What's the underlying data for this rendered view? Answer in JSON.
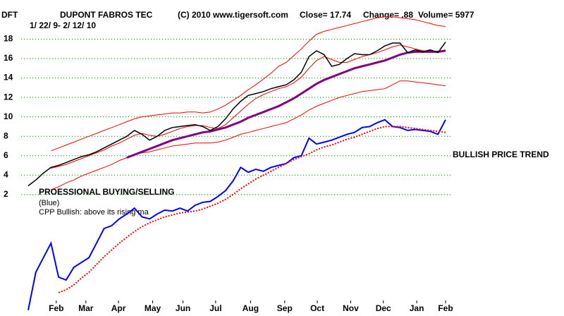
{
  "chart_data": {
    "type": "line",
    "ticker": "DFT",
    "title": "DUPONT FABROS TEC",
    "source": "(C) 2010 www.tigersoft.com",
    "close": "Close=  17.74",
    "change": "Change= .88",
    "volume": "Volume= 5977",
    "subtitle": "1/ 22/ 9- 2/ 12/ 10",
    "annotations": [
      "BULLISH PRICE TREND",
      "PROESSIONAL BUYING/SELLING",
      "(Blue)",
      "CPP Bullish: above its rising ma"
    ],
    "grid": true,
    "x": [
      0,
      1,
      2,
      3,
      4,
      5,
      6,
      7,
      8,
      9,
      10,
      11,
      12,
      13,
      14,
      15,
      16,
      17,
      18,
      19,
      20,
      21,
      22,
      23,
      24,
      25,
      26,
      27,
      28,
      29,
      30,
      31,
      32,
      33,
      34,
      35,
      36,
      37,
      38,
      39,
      40,
      41,
      42,
      43,
      44,
      45,
      46,
      47,
      48,
      49,
      50,
      51,
      52,
      53,
      54,
      55
    ],
    "xlim": [
      0,
      55
    ],
    "xticks": [
      {
        "value": 3.7,
        "label": "Feb"
      },
      {
        "value": 7.6,
        "label": "Mar"
      },
      {
        "value": 11.9,
        "label": "Apr"
      },
      {
        "value": 16.4,
        "label": "May"
      },
      {
        "value": 20.4,
        "label": "Jun"
      },
      {
        "value": 24.7,
        "label": "Jul"
      },
      {
        "value": 29.3,
        "label": "Aug"
      },
      {
        "value": 33.8,
        "label": "Sep"
      },
      {
        "value": 38.1,
        "label": "Oct"
      },
      {
        "value": 42.5,
        "label": "Nov"
      },
      {
        "value": 46.8,
        "label": "Dec"
      },
      {
        "value": 51.2,
        "label": "Jan"
      },
      {
        "value": 55,
        "label": "Feb"
      }
    ],
    "ylim": [
      -10.5,
      21.3
    ],
    "yticks": [
      2,
      4,
      6,
      8,
      10,
      12,
      14,
      16,
      18
    ],
    "series": [
      {
        "color": "#ff0000",
        "width": 1,
        "values": [
          null,
          null,
          null,
          6.5,
          6.8,
          7.1,
          7.4,
          7.7,
          8.0,
          8.3,
          8.6,
          8.9,
          9.2,
          9.5,
          9.8,
          10.0,
          10.1,
          10.2,
          10.3,
          10.4,
          10.4,
          10.5,
          10.5,
          10.4,
          10.5,
          10.8,
          11.2,
          11.7,
          12.2,
          12.8,
          13.3,
          13.9,
          14.5,
          15.2,
          15.6,
          16.3,
          17.0,
          17.8,
          18.5,
          18.8,
          19.0,
          19.2,
          19.4,
          19.6,
          19.8,
          20.0,
          20.2,
          20.3,
          20.3,
          20.2,
          20.1,
          20.0,
          19.8,
          19.6,
          19.4,
          19.3
        ]
      },
      {
        "color": "#ff0000",
        "width": 1,
        "values": [
          null,
          null,
          null,
          2.5,
          2.8,
          3.2,
          3.5,
          3.9,
          4.2,
          4.5,
          4.8,
          5.1,
          5.5,
          5.8,
          6.1,
          6.3,
          6.4,
          6.6,
          6.8,
          7.0,
          7.1,
          7.2,
          7.3,
          7.3,
          7.3,
          7.4,
          7.6,
          7.9,
          8.2,
          8.4,
          8.6,
          8.8,
          9.0,
          9.2,
          9.4,
          9.8,
          10.2,
          10.7,
          11.1,
          11.4,
          11.7,
          12.0,
          12.2,
          12.4,
          12.6,
          12.7,
          12.8,
          12.9,
          13.3,
          13.7,
          13.7,
          13.6,
          13.5,
          13.4,
          13.3,
          13.2
        ]
      },
      {
        "color": "#ff0000",
        "width": 1,
        "values": [
          null,
          null,
          null,
          4.7,
          4.9,
          5.1,
          5.4,
          5.7,
          6.0,
          6.3,
          6.6,
          7.0,
          7.3,
          7.7,
          8.1,
          8.3,
          8.1,
          8.0,
          8.2,
          8.5,
          8.8,
          9.0,
          9.1,
          9.1,
          8.9,
          8.8,
          9.2,
          9.9,
          10.6,
          11.3,
          11.9,
          12.3,
          12.6,
          12.9,
          13.1,
          13.5,
          14.1,
          15.0,
          15.8,
          16.2,
          15.9,
          15.6,
          15.6,
          15.9,
          16.2,
          16.4,
          16.6,
          16.9,
          17.2,
          17.4,
          17.2,
          17.0,
          16.8,
          16.8,
          16.7,
          16.9
        ]
      },
      {
        "color": "#800080",
        "width": 3,
        "values": [
          null,
          null,
          null,
          null,
          null,
          null,
          null,
          null,
          null,
          null,
          null,
          null,
          null,
          5.8,
          6.1,
          6.4,
          6.7,
          7.0,
          7.3,
          7.6,
          7.8,
          8.0,
          8.2,
          8.4,
          8.5,
          8.7,
          8.9,
          9.2,
          9.5,
          9.9,
          10.2,
          10.5,
          10.8,
          11.1,
          11.5,
          11.9,
          12.4,
          12.9,
          13.4,
          13.8,
          14.1,
          14.4,
          14.7,
          15.0,
          15.2,
          15.4,
          15.6,
          15.8,
          16.1,
          16.4,
          16.6,
          16.7,
          16.7,
          16.7,
          16.7,
          16.8
        ]
      },
      {
        "color": "#000000",
        "width": 1.5,
        "values": [
          2.9,
          3.5,
          4.2,
          4.8,
          5.0,
          5.3,
          5.6,
          5.9,
          6.1,
          6.4,
          6.8,
          7.2,
          7.6,
          8.0,
          8.6,
          8.2,
          7.6,
          8.0,
          8.6,
          8.9,
          9.0,
          9.1,
          9.2,
          9.0,
          8.6,
          9.0,
          9.8,
          10.8,
          11.6,
          12.2,
          12.4,
          12.6,
          12.9,
          13.1,
          13.3,
          13.8,
          14.6,
          16.2,
          16.8,
          16.4,
          15.2,
          15.4,
          16.0,
          16.5,
          16.4,
          16.4,
          16.8,
          17.3,
          17.6,
          17.6,
          16.6,
          16.9,
          16.7,
          16.9,
          16.6,
          17.7
        ]
      },
      {
        "color": "#0000ff",
        "width": 2,
        "values": [
          -9.9,
          -6.0,
          -4.5,
          -3.0,
          -6.5,
          -6.8,
          -5.5,
          -5.0,
          -4.5,
          -3.0,
          -1.5,
          -1.2,
          -0.5,
          0.0,
          0.6,
          -0.3,
          -0.5,
          0.0,
          0.4,
          0.3,
          0.6,
          0.3,
          0.9,
          1.2,
          1.3,
          1.8,
          2.4,
          3.4,
          4.8,
          4.3,
          4.6,
          4.4,
          4.8,
          5.0,
          5.2,
          5.8,
          6.0,
          7.8,
          7.2,
          7.4,
          7.6,
          7.9,
          8.2,
          8.4,
          8.9,
          9.0,
          9.4,
          9.7,
          9.0,
          8.9,
          8.6,
          8.7,
          8.6,
          8.5,
          8.2,
          9.7
        ]
      },
      {
        "color": "#ff0000",
        "width": 2,
        "dashed": true,
        "values": [
          null,
          null,
          null,
          null,
          -8.1,
          -7.8,
          -7.3,
          -6.6,
          -6.0,
          -5.2,
          -4.4,
          -3.7,
          -3.0,
          -2.4,
          -1.8,
          -1.3,
          -0.9,
          -0.6,
          -0.3,
          -0.1,
          0.1,
          0.2,
          0.3,
          0.5,
          0.8,
          1.1,
          1.5,
          2.0,
          2.6,
          3.1,
          3.6,
          4.0,
          4.4,
          4.8,
          5.2,
          5.6,
          5.9,
          6.2,
          6.6,
          6.9,
          7.1,
          7.4,
          7.7,
          7.9,
          8.2,
          8.5,
          8.8,
          9.0,
          9.0,
          9.0,
          8.9,
          8.8,
          8.7,
          8.6,
          8.5,
          8.4
        ]
      }
    ]
  }
}
